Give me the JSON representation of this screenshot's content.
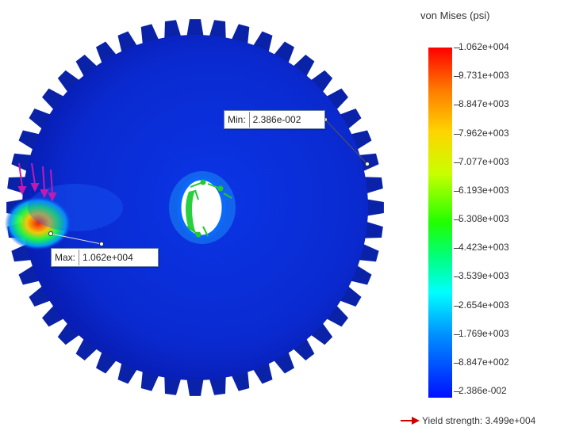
{
  "legend": {
    "title": "von Mises (psi)",
    "ticks": [
      "1.062e+004",
      "9.731e+003",
      "8.847e+003",
      "7.962e+003",
      "7.077e+003",
      "6.193e+003",
      "5.308e+003",
      "4.423e+003",
      "3.539e+003",
      "2.654e+003",
      "1.769e+003",
      "8.847e+002",
      "2.386e-002"
    ],
    "yield_text": "Yield strength: 3.499e+004",
    "yield_arrow_color": "#d40000"
  },
  "probes": {
    "min": {
      "key": "Min:",
      "value": "2.386e-002"
    },
    "max": {
      "key": "Max:",
      "value": "1.062e+004"
    }
  },
  "colors": {
    "gear_body": "#0b2fd4",
    "gear_teeth": "#0a22a8"
  }
}
